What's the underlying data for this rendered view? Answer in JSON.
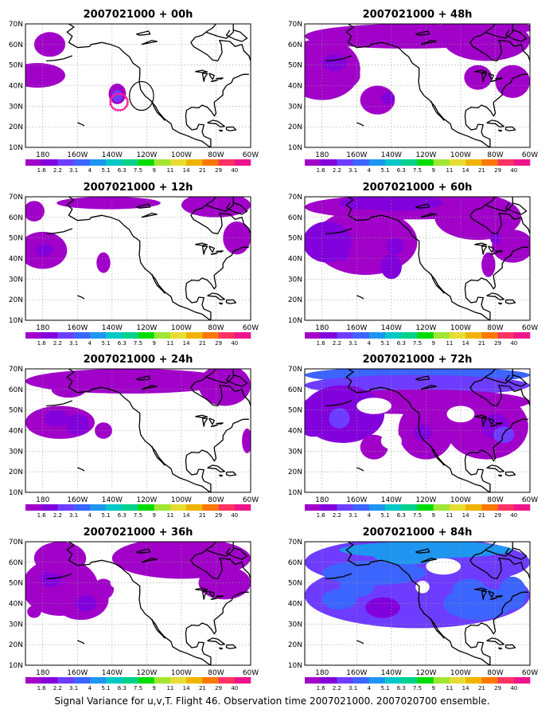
{
  "caption": "Signal Variance for u,v,T. Flight 46. Observation time 2007021000. 2007020700 ensemble.",
  "axes": {
    "lon_ticks": [
      "180",
      "160W",
      "140W",
      "120W",
      "100W",
      "80W",
      "60W"
    ],
    "lat_ticks": [
      "70N",
      "60N",
      "50N",
      "40N",
      "30N",
      "20N",
      "10N"
    ],
    "lon_range": [
      -190,
      -60
    ],
    "lat_range": [
      10,
      70
    ]
  },
  "colorbar": {
    "labels": [
      "1.6",
      "2.2",
      "3.1",
      "4",
      "5.1",
      "6.3",
      "7.5",
      "9",
      "11",
      "14",
      "21",
      "29",
      "40"
    ],
    "colors": [
      "#a000c8",
      "#8200dc",
      "#6e3cff",
      "#3c64ff",
      "#1e96f0",
      "#00c8c8",
      "#00d28c",
      "#00dc00",
      "#a0e632",
      "#e6dc32",
      "#f0b400",
      "#fa7800",
      "#ff3264",
      "#f0148c"
    ]
  },
  "maps": [
    {
      "title": "2007021000 + 00h"
    },
    {
      "title": "2007021000 + 48h"
    },
    {
      "title": "2007021000 + 12h"
    },
    {
      "title": "2007021000 + 60h"
    },
    {
      "title": "2007021000 + 24h"
    },
    {
      "title": "2007021000 + 72h"
    },
    {
      "title": "2007021000 + 36h"
    },
    {
      "title": "2007021000 + 84h"
    }
  ],
  "observation_circle": {
    "lon": -123,
    "lat": 35,
    "radius_deg": 7
  }
}
